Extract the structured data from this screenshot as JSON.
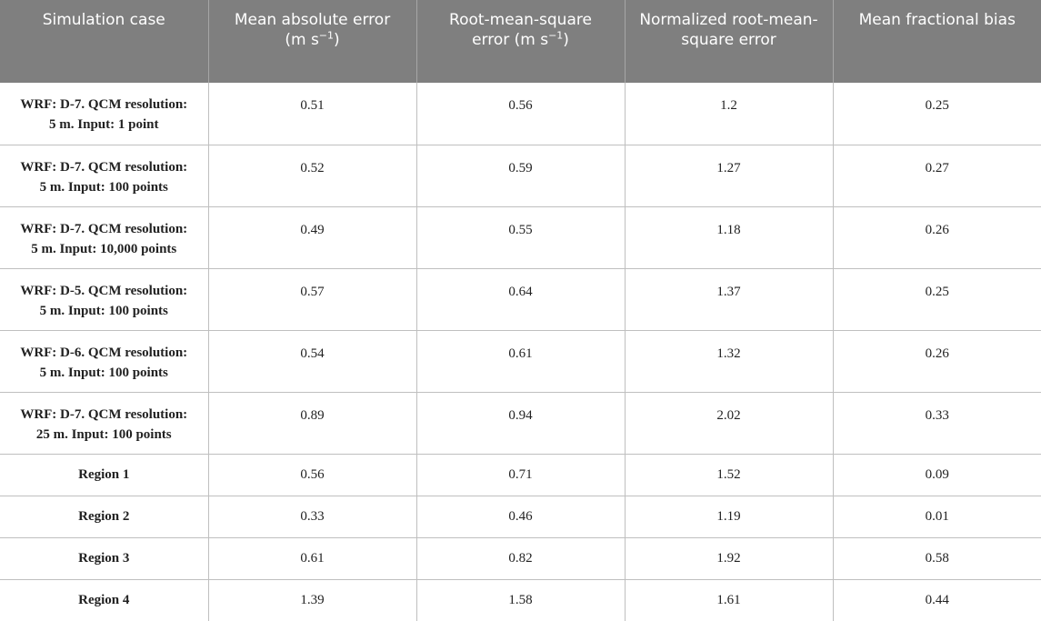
{
  "headers": {
    "simulation_case": "Simulation case",
    "mae_line1": "Mean absolute error",
    "mae_unit_pre": "(m s",
    "mae_unit_sup": "−1",
    "mae_unit_post": ")",
    "rmse_line1": "Root-mean-square",
    "rmse_unit_pre": "error (m s",
    "rmse_unit_sup": "−1",
    "rmse_unit_post": ")",
    "nrmse": "Normalized root-mean-square error",
    "mfb": "Mean fractional bias"
  },
  "rows": [
    {
      "case_line1": "WRF: D-7. QCM resolution:",
      "case_line2": "5 m. Input: 1 point",
      "mae": "0.51",
      "rmse": "0.56",
      "nrmse": "1.2",
      "mfb": "0.25"
    },
    {
      "case_line1": "WRF: D-7. QCM resolution:",
      "case_line2": "5 m. Input: 100 points",
      "mae": "0.52",
      "rmse": "0.59",
      "nrmse": "1.27",
      "mfb": "0.27"
    },
    {
      "case_line1": "WRF: D-7. QCM resolution:",
      "case_line2": "5 m. Input: 10,000 points",
      "mae": "0.49",
      "rmse": "0.55",
      "nrmse": "1.18",
      "mfb": "0.26"
    },
    {
      "case_line1": "WRF: D-5. QCM resolution:",
      "case_line2": "5 m. Input: 100 points",
      "mae": "0.57",
      "rmse": "0.64",
      "nrmse": "1.37",
      "mfb": "0.25"
    },
    {
      "case_line1": "WRF: D-6. QCM resolution:",
      "case_line2": "5 m. Input: 100 points",
      "mae": "0.54",
      "rmse": "0.61",
      "nrmse": "1.32",
      "mfb": "0.26"
    },
    {
      "case_line1": "WRF: D-7. QCM resolution:",
      "case_line2": "25 m. Input: 100 points",
      "mae": "0.89",
      "rmse": "0.94",
      "nrmse": "2.02",
      "mfb": "0.33"
    },
    {
      "case_line1": "Region 1",
      "case_line2": "",
      "mae": "0.56",
      "rmse": "0.71",
      "nrmse": "1.52",
      "mfb": "0.09"
    },
    {
      "case_line1": "Region 2",
      "case_line2": "",
      "mae": "0.33",
      "rmse": "0.46",
      "nrmse": "1.19",
      "mfb": "0.01"
    },
    {
      "case_line1": "Region 3",
      "case_line2": "",
      "mae": "0.61",
      "rmse": "0.82",
      "nrmse": "1.92",
      "mfb": "0.58"
    },
    {
      "case_line1": "Region 4",
      "case_line2": "",
      "mae": "1.39",
      "rmse": "1.58",
      "nrmse": "1.61",
      "mfb": "0.44"
    }
  ],
  "colors": {
    "header_bg": "#7f7f7f",
    "header_text": "#ffffff",
    "grid": "#bfbfbf"
  }
}
